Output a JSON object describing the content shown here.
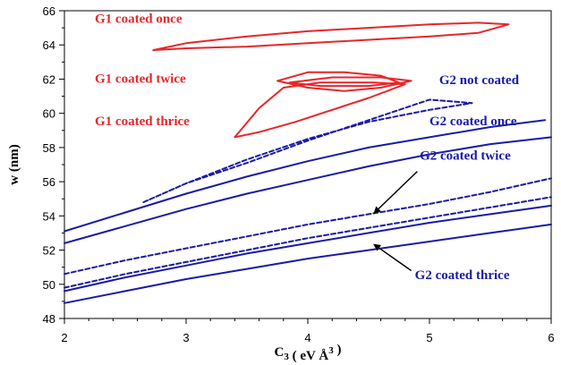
{
  "chart_data": {
    "type": "line",
    "title": "",
    "xlabel": "C₃ ( eV Å³ )",
    "ylabel": "w (nm)",
    "xlim": [
      2,
      6
    ],
    "ylim": [
      48,
      66
    ],
    "x_ticks": [
      2,
      3,
      4,
      5,
      6
    ],
    "y_ticks": [
      48,
      50,
      52,
      54,
      56,
      58,
      60,
      62,
      64,
      66
    ],
    "grid": false,
    "legend": "none",
    "colors": {
      "red": "#e8262a",
      "blue": "#1a1aa8"
    },
    "series": [
      {
        "name": "G1 coated once",
        "color": "#e8262a",
        "style": "solid",
        "closed": true,
        "points": [
          [
            2.73,
            63.7
          ],
          [
            3.0,
            63.8
          ],
          [
            3.5,
            63.9
          ],
          [
            4.0,
            64.1
          ],
          [
            4.5,
            64.3
          ],
          [
            5.0,
            64.5
          ],
          [
            5.4,
            64.7
          ],
          [
            5.65,
            65.2
          ],
          [
            5.4,
            65.3
          ],
          [
            5.0,
            65.2
          ],
          [
            4.5,
            65.0
          ],
          [
            4.0,
            64.8
          ],
          [
            3.5,
            64.5
          ],
          [
            3.0,
            64.1
          ],
          [
            2.73,
            63.7
          ]
        ]
      },
      {
        "name": "G1 coated twice",
        "color": "#e8262a",
        "style": "solid",
        "closed": true,
        "points": [
          [
            3.75,
            61.9
          ],
          [
            4.0,
            61.5
          ],
          [
            4.3,
            61.3
          ],
          [
            4.6,
            61.5
          ],
          [
            4.85,
            61.9
          ],
          [
            4.6,
            62.1
          ],
          [
            4.2,
            62.1
          ],
          [
            3.85,
            61.8
          ],
          [
            4.1,
            61.6
          ],
          [
            4.5,
            61.6
          ],
          [
            4.75,
            61.8
          ],
          [
            4.6,
            62.2
          ],
          [
            4.3,
            62.4
          ],
          [
            4.0,
            62.4
          ],
          [
            3.75,
            61.9
          ]
        ]
      },
      {
        "name": "G1 coated thrice",
        "color": "#e8262a",
        "style": "solid",
        "closed": true,
        "points": [
          [
            3.4,
            58.6
          ],
          [
            3.6,
            58.9
          ],
          [
            3.9,
            59.5
          ],
          [
            4.2,
            60.2
          ],
          [
            4.5,
            60.9
          ],
          [
            4.8,
            61.7
          ],
          [
            4.55,
            61.8
          ],
          [
            4.1,
            61.8
          ],
          [
            3.8,
            61.5
          ],
          [
            3.6,
            60.3
          ],
          [
            3.4,
            58.6
          ]
        ]
      },
      {
        "name": "G2 not coated",
        "color": "#1a1aa8",
        "style": "dashed",
        "closed": false,
        "points": [
          [
            2.65,
            54.8
          ],
          [
            3.0,
            55.9
          ],
          [
            3.5,
            57.1
          ],
          [
            4.0,
            58.4
          ],
          [
            4.5,
            59.6
          ],
          [
            5.0,
            60.8
          ],
          [
            5.35,
            60.6
          ],
          [
            5.0,
            60.2
          ],
          [
            4.5,
            59.5
          ],
          [
            4.0,
            58.5
          ],
          [
            3.5,
            57.3
          ],
          [
            3.0,
            55.9
          ],
          [
            2.65,
            54.8
          ]
        ]
      },
      {
        "name": "G2 coated once",
        "color": "#1a1aa8",
        "style": "solid",
        "closed": false,
        "points": [
          [
            2.0,
            53.1
          ],
          [
            2.5,
            54.2
          ],
          [
            3.0,
            55.3
          ],
          [
            3.5,
            56.3
          ],
          [
            4.0,
            57.2
          ],
          [
            4.5,
            58.0
          ],
          [
            5.0,
            58.6
          ],
          [
            5.5,
            59.2
          ],
          [
            5.95,
            59.6
          ]
        ]
      },
      {
        "name": "G2 coated once (2)",
        "color": "#1a1aa8",
        "style": "solid",
        "closed": false,
        "points": [
          [
            2.0,
            52.4
          ],
          [
            2.5,
            53.4
          ],
          [
            3.0,
            54.4
          ],
          [
            3.5,
            55.3
          ],
          [
            4.0,
            56.1
          ],
          [
            4.5,
            56.9
          ],
          [
            5.0,
            57.6
          ],
          [
            5.5,
            58.2
          ],
          [
            6.0,
            58.6
          ]
        ]
      },
      {
        "name": "G2 coated twice",
        "color": "#1a1aa8",
        "style": "dashed",
        "closed": false,
        "points": [
          [
            2.0,
            50.6
          ],
          [
            2.5,
            51.4
          ],
          [
            3.0,
            52.1
          ],
          [
            3.5,
            52.8
          ],
          [
            4.0,
            53.5
          ],
          [
            4.5,
            54.1
          ],
          [
            5.0,
            54.7
          ],
          [
            5.5,
            55.4
          ],
          [
            6.0,
            56.2
          ]
        ]
      },
      {
        "name": "G2 coated twice (2)",
        "color": "#1a1aa8",
        "style": "dashed",
        "closed": false,
        "points": [
          [
            2.0,
            49.8
          ],
          [
            2.5,
            50.6
          ],
          [
            3.0,
            51.3
          ],
          [
            3.5,
            52.0
          ],
          [
            4.0,
            52.7
          ],
          [
            4.5,
            53.3
          ],
          [
            5.0,
            53.9
          ],
          [
            5.5,
            54.5
          ],
          [
            6.0,
            55.1
          ]
        ]
      },
      {
        "name": "G2 coated thrice",
        "color": "#1a1aa8",
        "style": "solid",
        "closed": false,
        "points": [
          [
            2.0,
            49.6
          ],
          [
            2.5,
            50.4
          ],
          [
            3.0,
            51.1
          ],
          [
            3.5,
            51.8
          ],
          [
            4.0,
            52.4
          ],
          [
            4.5,
            53.0
          ],
          [
            5.0,
            53.6
          ],
          [
            5.5,
            54.1
          ],
          [
            6.0,
            54.6
          ]
        ]
      },
      {
        "name": "G2 coated thrice (2)",
        "color": "#1a1aa8",
        "style": "solid",
        "closed": false,
        "points": [
          [
            2.0,
            48.9
          ],
          [
            2.5,
            49.6
          ],
          [
            3.0,
            50.3
          ],
          [
            3.5,
            50.9
          ],
          [
            4.0,
            51.5
          ],
          [
            4.5,
            52.0
          ],
          [
            5.0,
            52.5
          ],
          [
            5.5,
            53.0
          ],
          [
            6.0,
            53.5
          ]
        ]
      }
    ],
    "annotations": [
      {
        "text": "G1 coated once",
        "color": "#e8262a",
        "x": 2.25,
        "y": 65.3
      },
      {
        "text": "G1 coated twice",
        "color": "#e8262a",
        "x": 2.25,
        "y": 61.8
      },
      {
        "text": "G1 coated thrice",
        "color": "#e8262a",
        "x": 2.25,
        "y": 59.3
      },
      {
        "text": "G2 not coated",
        "color": "#1a1aa8",
        "x": 5.08,
        "y": 61.7
      },
      {
        "text": "G2 coated once",
        "color": "#1a1aa8",
        "x": 5.0,
        "y": 59.3
      },
      {
        "text": "G2 coated twice",
        "color": "#1a1aa8",
        "x": 4.92,
        "y": 57.3
      },
      {
        "text": "G2 coated thrice",
        "color": "#1a1aa8",
        "x": 4.88,
        "y": 50.3
      }
    ],
    "arrows": [
      {
        "from": [
          4.9,
          56.6
        ],
        "to": [
          4.55,
          54.2
        ],
        "color": "#000000"
      },
      {
        "from": [
          4.85,
          50.8
        ],
        "to": [
          4.55,
          52.3
        ],
        "color": "#000000"
      }
    ]
  }
}
